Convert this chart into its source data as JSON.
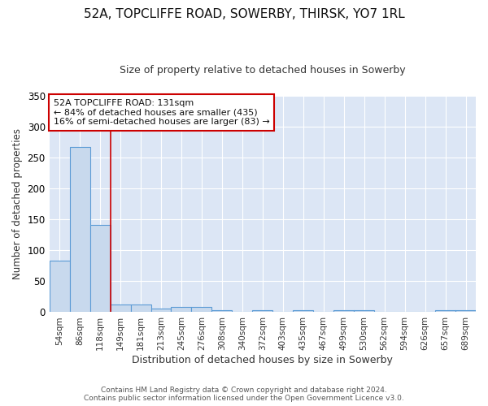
{
  "title": "52A, TOPCLIFFE ROAD, SOWERBY, THIRSK, YO7 1RL",
  "subtitle": "Size of property relative to detached houses in Sowerby",
  "xlabel": "Distribution of detached houses by size in Sowerby",
  "ylabel": "Number of detached properties",
  "footer": "Contains HM Land Registry data © Crown copyright and database right 2024.\nContains public sector information licensed under the Open Government Licence v3.0.",
  "bin_labels": [
    "54sqm",
    "86sqm",
    "118sqm",
    "149sqm",
    "181sqm",
    "213sqm",
    "245sqm",
    "276sqm",
    "308sqm",
    "340sqm",
    "372sqm",
    "403sqm",
    "435sqm",
    "467sqm",
    "499sqm",
    "530sqm",
    "562sqm",
    "594sqm",
    "626sqm",
    "657sqm",
    "689sqm"
  ],
  "bar_heights": [
    83,
    267,
    141,
    13,
    13,
    6,
    9,
    9,
    3,
    0,
    3,
    0,
    3,
    0,
    3,
    3,
    0,
    0,
    0,
    3,
    3
  ],
  "bar_color": "#c8d9ed",
  "bar_edge_color": "#5b9bd5",
  "red_line_x": 2.5,
  "annotation_text": "52A TOPCLIFFE ROAD: 131sqm\n← 84% of detached houses are smaller (435)\n16% of semi-detached houses are larger (83) →",
  "annotation_box_color": "white",
  "annotation_box_edge": "#cc0000",
  "ylim": [
    0,
    350
  ],
  "yticks": [
    0,
    50,
    100,
    150,
    200,
    250,
    300,
    350
  ],
  "figure_bg": "#ffffff",
  "axes_bg": "#dce6f5",
  "grid_color": "#ffffff",
  "red_line_color": "#cc0000",
  "title_fontsize": 11,
  "subtitle_fontsize": 9
}
